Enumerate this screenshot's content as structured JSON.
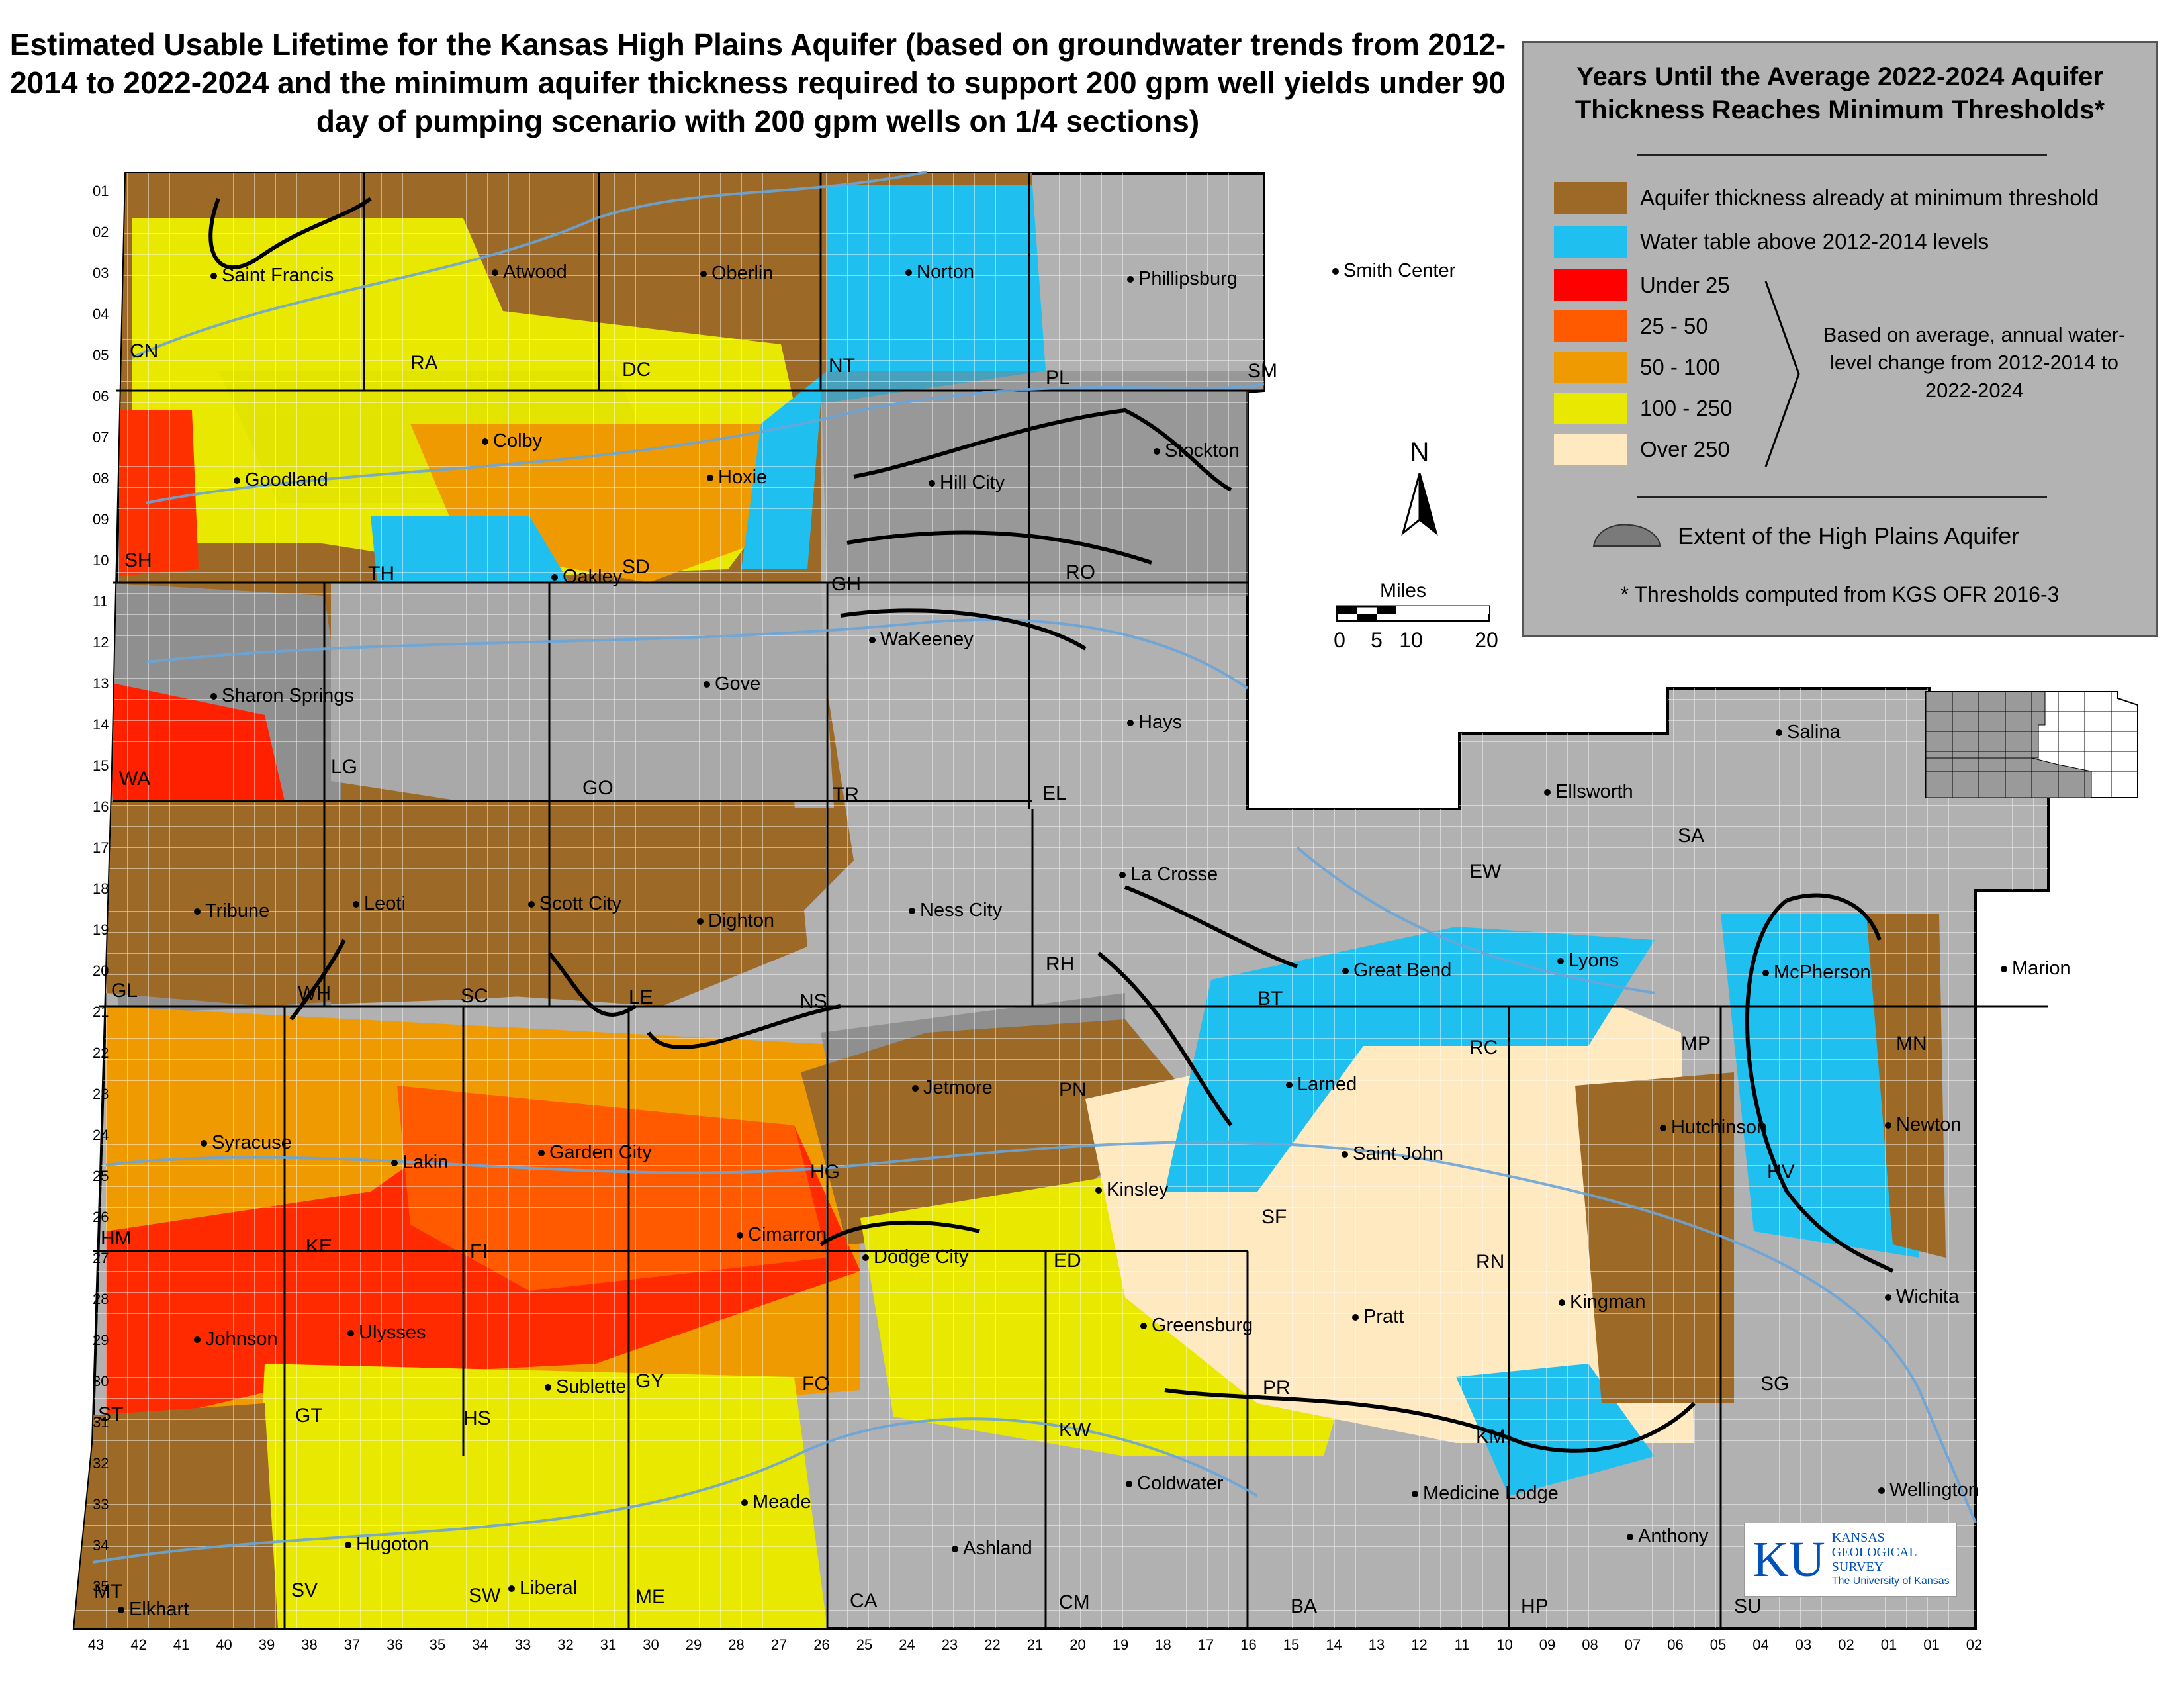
{
  "title": "Estimated Usable Lifetime for the Kansas High Plains Aquifer (based on groundwater trends from 2012-2014 to 2022-2024 and the minimum aquifer thickness required to support 200 gpm well yields under 90 day of pumping scenario with 200 gpm wells on 1/4 sections)",
  "legend": {
    "title": "Years Until the Average 2022-2024 Aquifer Thickness Reaches Minimum Thresholds*",
    "items": [
      {
        "label": "Aquifer thickness already at minimum threshold",
        "color": "#9c6a26"
      },
      {
        "label": "Water table above 2012-2014 levels",
        "color": "#1fbff0"
      },
      {
        "label": "Under 25",
        "color": "#ff0000"
      },
      {
        "label": "25 - 50",
        "color": "#ff5a00"
      },
      {
        "label": "50 - 100",
        "color": "#ee9a00"
      },
      {
        "label": "100 - 250",
        "color": "#e8e800"
      },
      {
        "label": "Over 250",
        "color": "#ffe9c0"
      }
    ],
    "brace_note": "Based on average, annual water-level change from 2012-2014 to 2022-2024",
    "extent_label": "Extent of the High Plains Aquifer",
    "extent_color": "#7a7a7a",
    "footnote": "* Thresholds computed from KGS OFR 2016-3"
  },
  "scale": {
    "title": "Miles",
    "ticks": [
      "0",
      "5",
      "10",
      "20"
    ]
  },
  "north": "N",
  "cities": [
    {
      "name": "Saint Francis"
    },
    {
      "name": "Atwood"
    },
    {
      "name": "Oberlin"
    },
    {
      "name": "Norton"
    },
    {
      "name": "Phillipsburg"
    },
    {
      "name": "Smith Center"
    },
    {
      "name": "Goodland"
    },
    {
      "name": "Colby"
    },
    {
      "name": "Hoxie"
    },
    {
      "name": "Hill City"
    },
    {
      "name": "Stockton"
    },
    {
      "name": "Oakley"
    },
    {
      "name": "WaKeeney"
    },
    {
      "name": "Sharon Springs"
    },
    {
      "name": "Gove"
    },
    {
      "name": "Hays"
    },
    {
      "name": "Salina"
    },
    {
      "name": "Ellsworth"
    },
    {
      "name": "Tribune"
    },
    {
      "name": "Leoti"
    },
    {
      "name": "Scott City"
    },
    {
      "name": "Dighton"
    },
    {
      "name": "Ness City"
    },
    {
      "name": "La Crosse"
    },
    {
      "name": "Lyons"
    },
    {
      "name": "Marion"
    },
    {
      "name": "McPherson"
    },
    {
      "name": "Great Bend"
    },
    {
      "name": "Larned"
    },
    {
      "name": "Jetmore"
    },
    {
      "name": "Syracuse"
    },
    {
      "name": "Lakin"
    },
    {
      "name": "Garden City"
    },
    {
      "name": "Saint John"
    },
    {
      "name": "Hutchinson"
    },
    {
      "name": "Newton"
    },
    {
      "name": "Kinsley"
    },
    {
      "name": "Cimarron"
    },
    {
      "name": "Dodge City"
    },
    {
      "name": "Pratt"
    },
    {
      "name": "Kingman"
    },
    {
      "name": "Wichita"
    },
    {
      "name": "Johnson"
    },
    {
      "name": "Ulysses"
    },
    {
      "name": "Greensburg"
    },
    {
      "name": "Sublette"
    },
    {
      "name": "Coldwater"
    },
    {
      "name": "Medicine Lodge"
    },
    {
      "name": "Wellington"
    },
    {
      "name": "Meade"
    },
    {
      "name": "Ashland"
    },
    {
      "name": "Anthony"
    },
    {
      "name": "Hugoton"
    },
    {
      "name": "Liberal"
    },
    {
      "name": "Elkhart"
    }
  ],
  "counties": [
    "CN",
    "RA",
    "DC",
    "NT",
    "PL",
    "SM",
    "SH",
    "TH",
    "SD",
    "GH",
    "RO",
    "WA",
    "LG",
    "GO",
    "TR",
    "EL",
    "SA",
    "EW",
    "GL",
    "WH",
    "SC",
    "LE",
    "NS",
    "RH",
    "BT",
    "RC",
    "MP",
    "MN",
    "PN",
    "HG",
    "KE",
    "HM",
    "FI",
    "SF",
    "ED",
    "RN",
    "HV",
    "ST",
    "GT",
    "HS",
    "GY",
    "FO",
    "KW",
    "PR",
    "KM",
    "SG",
    "MT",
    "SV",
    "SW",
    "ME",
    "CA",
    "CM",
    "BA",
    "HP",
    "SU"
  ],
  "townships": [
    "01",
    "02",
    "03",
    "04",
    "05",
    "06",
    "07",
    "08",
    "09",
    "10",
    "11",
    "12",
    "13",
    "14",
    "15",
    "16",
    "17",
    "18",
    "19",
    "20",
    "21",
    "22",
    "23",
    "24",
    "25",
    "26",
    "27",
    "28",
    "29",
    "30",
    "31",
    "32",
    "33",
    "34",
    "35"
  ],
  "ranges": [
    "43",
    "42",
    "41",
    "40",
    "39",
    "38",
    "37",
    "36",
    "35",
    "34",
    "33",
    "32",
    "31",
    "30",
    "29",
    "28",
    "27",
    "26",
    "25",
    "24",
    "23",
    "22",
    "21",
    "20",
    "19",
    "18",
    "17",
    "16",
    "15",
    "14",
    "13",
    "12",
    "11",
    "10",
    "09",
    "08",
    "07",
    "06",
    "05",
    "04",
    "03",
    "02",
    "01",
    "01",
    "02"
  ],
  "logo": {
    "mark": "KU",
    "text": [
      "KANSAS",
      "GEOLOGICAL",
      "SURVEY",
      "The University of Kansas"
    ]
  }
}
